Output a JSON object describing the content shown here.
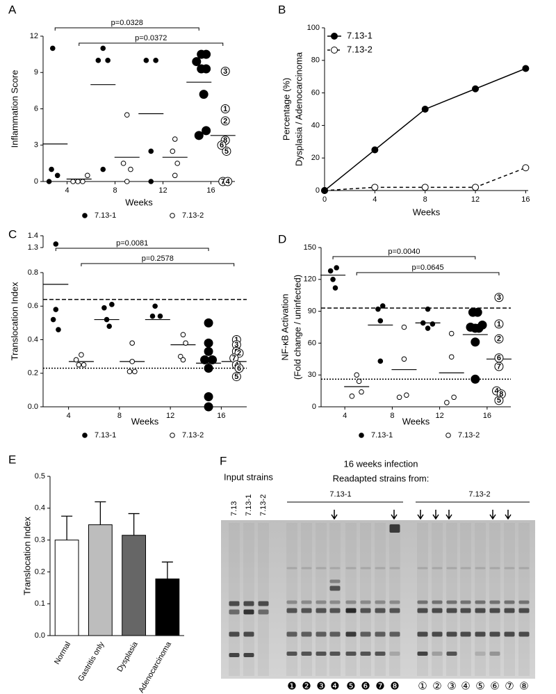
{
  "chart_data": [
    {
      "type": "scatter",
      "panel": "A",
      "ylabel": "Inflammation Score",
      "xlabel": "Weeks",
      "xlim": [
        2,
        18
      ],
      "xticks": [
        4,
        8,
        12,
        16
      ],
      "ylim": [
        0,
        12
      ],
      "yticks": [
        0,
        3,
        6,
        9,
        12
      ],
      "legend": "bottom",
      "series": [
        {
          "name": "7.13-1",
          "color": "#000000",
          "marker": "filled",
          "x": [
            2.8,
            2.7,
            3.2,
            2.5,
            7,
            6.6,
            7.4,
            7,
            10.6,
            11.4,
            11,
            11,
            15.2,
            15.6,
            14.8,
            15.2,
            15.6,
            15.4,
            15.6,
            15
          ],
          "values": [
            11,
            1,
            0.5,
            0,
            11,
            10,
            10,
            1,
            10,
            10,
            2.5,
            0,
            10.5,
            10.5,
            9.9,
            9.3,
            9.3,
            7.2,
            4.2,
            3.8
          ],
          "labels": [
            null,
            null,
            null,
            null,
            null,
            null,
            null,
            null,
            null,
            null,
            null,
            null,
            "5",
            "8",
            "7",
            "1",
            "3",
            "2",
            "4",
            "6"
          ],
          "mean_x": [
            3,
            7,
            11,
            15
          ],
          "means": [
            3.1,
            8,
            5.6,
            8.2
          ]
        },
        {
          "name": "7.13-2",
          "color": "#000000",
          "marker": "open",
          "x": [
            4.5,
            4.9,
            5.3,
            5.7,
            9,
            8.7,
            9.3,
            9,
            13,
            12.8,
            13.2,
            13,
            17.2,
            17.2,
            17.2,
            17.2,
            16.9,
            17.3,
            17,
            17.4
          ],
          "values": [
            0,
            0,
            0,
            0.5,
            5.5,
            1.5,
            1,
            0,
            3.5,
            2.5,
            1.5,
            0.5,
            9.1,
            6,
            5,
            3.4,
            3,
            2.5,
            0,
            0
          ],
          "labels": [
            null,
            null,
            null,
            null,
            null,
            null,
            null,
            null,
            null,
            null,
            null,
            null,
            "3",
            "1",
            "2",
            "8",
            "6",
            "5",
            "7",
            "4"
          ],
          "mean_x": [
            5,
            9,
            13,
            17
          ],
          "means": [
            0.2,
            2,
            2,
            3.8
          ]
        }
      ],
      "brackets": [
        {
          "label": "p=0.0328",
          "x": [
            3,
            15
          ]
        },
        {
          "label": "p=0.0372",
          "x": [
            5,
            17
          ]
        }
      ]
    },
    {
      "type": "line",
      "panel": "B",
      "ylabel": [
        "Percentage (%)",
        "Dysplasia / Adenocarcinoma"
      ],
      "xlabel": "Weeks",
      "x": [
        0,
        4,
        8,
        12,
        16
      ],
      "xlim": [
        0,
        16.2
      ],
      "xticks": [
        0,
        4,
        8,
        12,
        16
      ],
      "ylim": [
        0,
        100
      ],
      "yticks": [
        0,
        20,
        40,
        60,
        80,
        100
      ],
      "legend": "top-left",
      "series": [
        {
          "name": "7.13-1",
          "color": "#000000",
          "marker": "filled",
          "line_style": "solid",
          "values": [
            0,
            25,
            50,
            62.5,
            75
          ]
        },
        {
          "name": "7.13-2",
          "color": "#000000",
          "marker": "open",
          "line_style": "dashed",
          "values": [
            0,
            2,
            2,
            2,
            14
          ]
        }
      ]
    },
    {
      "type": "scatter",
      "panel": "C",
      "ylabel": "Translocation Index",
      "xlabel": "Weeks",
      "xlim": [
        2,
        18
      ],
      "xticks": [
        4,
        8,
        12,
        16
      ],
      "ylim": [
        0,
        1.4
      ],
      "ybreak": [
        0.8,
        1.3
      ],
      "yticks": [
        {
          "value": 0,
          "label": "0.0"
        },
        0.2,
        0.4,
        0.6,
        0.8,
        1.3,
        1.4
      ],
      "legend": "bottom",
      "series": [
        {
          "name": "7.13-1",
          "color": "#000000",
          "marker": "filled",
          "x": [
            3,
            3,
            2.8,
            3.2,
            6.8,
            7.4,
            7,
            7.2,
            10.8,
            10.6,
            11.2,
            15,
            15,
            15,
            14.7,
            15.3,
            15,
            15,
            15
          ],
          "values": [
            1.33,
            0.58,
            0.52,
            0.46,
            0.59,
            0.61,
            0.52,
            0.48,
            0.6,
            0.54,
            0.54,
            0.5,
            0.38,
            0.33,
            0.28,
            0.28,
            0.23,
            0.06,
            0
          ],
          "labels": [
            null,
            null,
            null,
            null,
            null,
            null,
            null,
            null,
            null,
            null,
            null,
            "6",
            "2",
            "4",
            "3",
            "1",
            "5",
            "8",
            "7"
          ],
          "mean_x": [
            3,
            7,
            11,
            15
          ],
          "means": [
            0.73,
            0.52,
            0.52,
            0.26
          ]
        },
        {
          "name": "7.13-2",
          "color": "#000000",
          "marker": "open",
          "x": [
            4.6,
            5,
            4.8,
            5.2,
            9,
            9,
            8.8,
            9.2,
            13,
            13.2,
            12.8,
            13,
            17.2,
            17.2,
            17.2,
            17.4,
            17,
            17.2,
            17.4,
            17.2
          ],
          "values": [
            0.28,
            0.31,
            0.25,
            0.25,
            0.38,
            0.27,
            0.21,
            0.21,
            0.43,
            0.38,
            0.3,
            0.28,
            0.4,
            0.37,
            0.33,
            0.32,
            0.29,
            0.25,
            0.23,
            0.18
          ],
          "labels": [
            null,
            null,
            null,
            null,
            null,
            null,
            null,
            null,
            null,
            null,
            null,
            null,
            "1",
            "3",
            "8",
            "2",
            "7",
            "4",
            "6",
            "5"
          ],
          "mean_x": [
            5,
            9,
            13,
            17
          ],
          "means": [
            0.27,
            0.27,
            0.37,
            0.27
          ]
        }
      ],
      "reference_lines": [
        {
          "value": 0.64,
          "style": "dashed"
        },
        {
          "value": 0.23,
          "style": "dotted"
        }
      ],
      "brackets": [
        {
          "label": "p=0.0081",
          "x": [
            3,
            15
          ]
        },
        {
          "label": "p=0.2578",
          "x": [
            5,
            17
          ]
        }
      ]
    },
    {
      "type": "scatter",
      "panel": "D",
      "ylabel": [
        "NF-κB Activation",
        "(Fold change / uninfected)"
      ],
      "xlabel": "Weeks",
      "xlim": [
        2,
        18
      ],
      "xticks": [
        4,
        8,
        12,
        16
      ],
      "ylim": [
        0,
        150
      ],
      "yticks": [
        0,
        30,
        60,
        90,
        120,
        150
      ],
      "legend": "bottom",
      "series": [
        {
          "name": "7.13-1",
          "color": "#000000",
          "marker": "filled",
          "x": [
            3.3,
            2.8,
            3,
            3.2,
            7.2,
            6.8,
            7,
            7,
            11,
            10.6,
            11.4,
            11,
            14.8,
            15.2,
            14.6,
            15,
            15.3,
            15.6,
            15,
            15
          ],
          "values": [
            131,
            128,
            120,
            112,
            95,
            92,
            81,
            43,
            92,
            79,
            78,
            74,
            89,
            89,
            75,
            74,
            74,
            77,
            61,
            26
          ],
          "labels": [
            null,
            null,
            null,
            null,
            null,
            null,
            null,
            null,
            null,
            null,
            null,
            null,
            "3",
            "4",
            "7",
            "1",
            "6",
            "2",
            "5",
            "8"
          ],
          "mean_x": [
            3,
            7,
            11,
            15
          ],
          "means": [
            124,
            77,
            79,
            68
          ]
        },
        {
          "name": "7.13-2",
          "color": "#000000",
          "marker": "open",
          "x": [
            5,
            5.2,
            4.6,
            5.4,
            9,
            9,
            8.6,
            9.2,
            13,
            13,
            12.6,
            13.2,
            17,
            17,
            17,
            17,
            17,
            16.8,
            17.2,
            17
          ],
          "values": [
            30,
            24,
            10,
            14,
            75,
            45,
            9,
            11,
            69,
            47,
            4,
            9,
            103,
            78,
            64,
            46,
            38,
            15,
            12,
            6
          ],
          "labels": [
            null,
            null,
            null,
            null,
            null,
            null,
            null,
            null,
            null,
            null,
            null,
            null,
            "3",
            "1",
            "2",
            "6",
            "7",
            "4",
            "8",
            "5"
          ],
          "mean_x": [
            5,
            9,
            13,
            17
          ],
          "means": [
            19,
            35,
            32,
            45
          ]
        }
      ],
      "reference_lines": [
        {
          "value": 93,
          "style": "dashed"
        },
        {
          "value": 26,
          "style": "dotted"
        }
      ],
      "brackets": [
        {
          "label": "p=0.0040",
          "x": [
            3,
            15
          ]
        },
        {
          "label": "p=0.0645",
          "x": [
            5,
            17
          ]
        }
      ]
    },
    {
      "type": "bar",
      "panel": "E",
      "ylabel": "Translocation Index",
      "categories": [
        "Normal",
        "Gastritis only",
        "Dysplasia",
        "Adenocarcinoma"
      ],
      "values": [
        0.3,
        0.348,
        0.315,
        0.178
      ],
      "errors": [
        0.075,
        0.072,
        0.068,
        0.053
      ],
      "colors": [
        "#ffffff",
        "#bdbdbd",
        "#666666",
        "#000000"
      ],
      "ylim": [
        0,
        0.5
      ],
      "yticks": [
        {
          "value": 0,
          "label": "0.0"
        },
        0.1,
        0.2,
        0.3,
        0.4,
        0.5
      ]
    }
  ],
  "gel": {
    "panel": "F",
    "title_lines": [
      "16 weeks infection",
      "Readapted strains from:"
    ],
    "input_label": "Input strains",
    "input_lanes": [
      "7.13",
      "7.13-1",
      "7.13-2"
    ],
    "groups": [
      "7.13-1",
      "7.13-2"
    ],
    "lanes_1": [
      "❶",
      "❷",
      "❸",
      "❹",
      "❺",
      "❻",
      "❼",
      "❽"
    ],
    "lanes_2": [
      "①",
      "②",
      "③",
      "④",
      "⑤",
      "⑥",
      "⑦",
      "⑧"
    ]
  }
}
